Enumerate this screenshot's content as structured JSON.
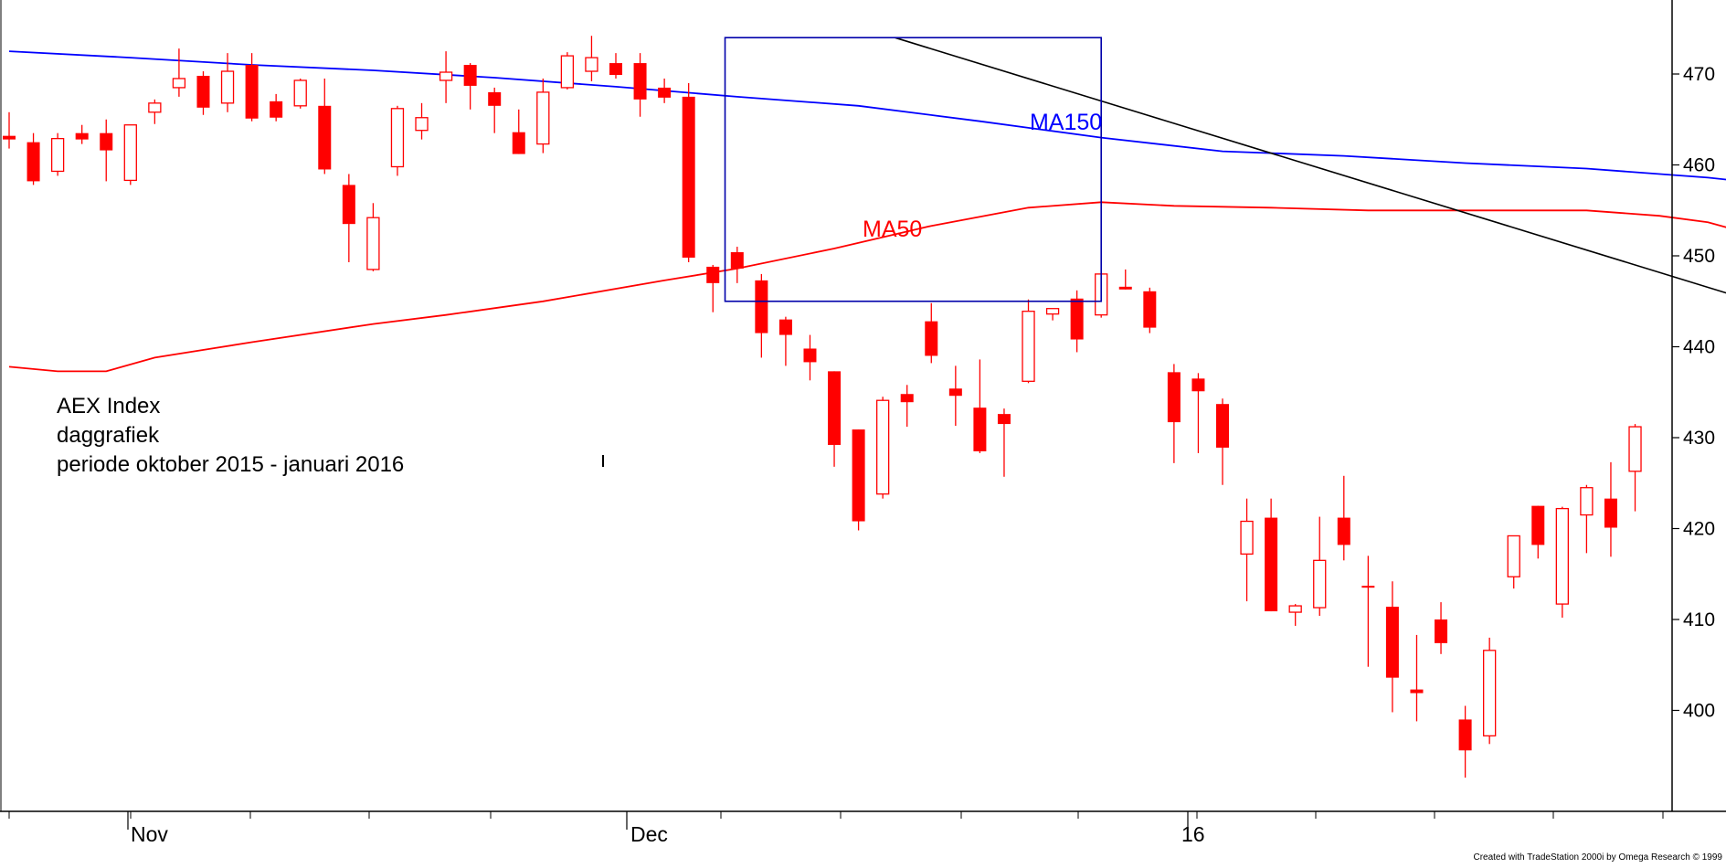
{
  "chart_data": {
    "type": "candlestick",
    "title_lines": [
      "AEX Index",
      "daggrafiek",
      "periode oktober 2015 - januari 2016"
    ],
    "x_tick_labels": [
      "Nov",
      "Dec",
      "16"
    ],
    "y_ticks": [
      400,
      410,
      420,
      430,
      440,
      450,
      460,
      470
    ],
    "ylim": [
      392,
      480
    ],
    "footer": "Created with TradeStation 2000i by Omega Research © 1999",
    "grid": false,
    "colors": {
      "candle": "#ff0000",
      "ma150": "#0000ff",
      "ma50": "#ff0000",
      "trendline": "#000000",
      "box": "#0000aa",
      "axis": "#000000"
    },
    "series": [
      {
        "name": "MA150",
        "label": "MA150",
        "color": "#0000ff",
        "values": [
          [
            0,
            472.5
          ],
          [
            5,
            471.8
          ],
          [
            10,
            471
          ],
          [
            15,
            470.4
          ],
          [
            20,
            469.6
          ],
          [
            25,
            468.6
          ],
          [
            30,
            467.5
          ],
          [
            35,
            466.5
          ],
          [
            40,
            464.8
          ],
          [
            45,
            463
          ],
          [
            50,
            461.5
          ],
          [
            55,
            461
          ],
          [
            60,
            460.2
          ],
          [
            65,
            459.6
          ],
          [
            70,
            458.6
          ],
          [
            75,
            457.2
          ],
          [
            80,
            456
          ],
          [
            85,
            454.7
          ],
          [
            90,
            453.2
          ],
          [
            95,
            452
          ],
          [
            97,
            451.4
          ]
        ]
      },
      {
        "name": "MA50",
        "label": "MA50",
        "color": "#ff0000",
        "values": [
          [
            0,
            437.8
          ],
          [
            2,
            437.3
          ],
          [
            4,
            437.3
          ],
          [
            6,
            438.8
          ],
          [
            10,
            440.5
          ],
          [
            15,
            442.5
          ],
          [
            18,
            443.5
          ],
          [
            22,
            445
          ],
          [
            27,
            447.3
          ],
          [
            30,
            448.6
          ],
          [
            34,
            450.8
          ],
          [
            38,
            453.3
          ],
          [
            42,
            455.3
          ],
          [
            45,
            455.9
          ],
          [
            48,
            455.5
          ],
          [
            52,
            455.3
          ],
          [
            56,
            455
          ],
          [
            60,
            455
          ],
          [
            65,
            455
          ],
          [
            68,
            454.4
          ],
          [
            70,
            453.7
          ],
          [
            73,
            451.5
          ],
          [
            77,
            448
          ],
          [
            81,
            445
          ],
          [
            85,
            441.5
          ],
          [
            89,
            437.8
          ],
          [
            93,
            435.8
          ],
          [
            96,
            433.7
          ],
          [
            97,
            433.4
          ]
        ]
      }
    ],
    "trendline": {
      "start": [
        36.5,
        474
      ],
      "end": [
        97,
        424.4
      ]
    },
    "box": {
      "x": [
        29.5,
        45
      ],
      "y": [
        445,
        474
      ]
    },
    "candles": [
      [
        0,
        463.2,
        465.8,
        461.8,
        462.8
      ],
      [
        1,
        462.5,
        463.5,
        457.8,
        458.2
      ],
      [
        2,
        459.3,
        463.5,
        458.8,
        462.9
      ],
      [
        3,
        463.5,
        464.4,
        462.3,
        462.8
      ],
      [
        4,
        463.5,
        465,
        458.2,
        461.6
      ],
      [
        5,
        458.3,
        464.2,
        457.8,
        464.4
      ],
      [
        6,
        465.8,
        467.2,
        464.5,
        466.8
      ],
      [
        7,
        468.5,
        472.8,
        467.5,
        469.5
      ],
      [
        8,
        469.8,
        470.3,
        465.5,
        466.3
      ],
      [
        9,
        466.8,
        472.3,
        465.8,
        470.3
      ],
      [
        10,
        471,
        472.3,
        464.8,
        465.1
      ],
      [
        11,
        467,
        467.8,
        464.8,
        465.2
      ],
      [
        12,
        466.5,
        469.5,
        466.2,
        469.3
      ],
      [
        13,
        466.5,
        469.5,
        459,
        459.5
      ],
      [
        14,
        457.8,
        459,
        449.3,
        453.5
      ],
      [
        15,
        448.5,
        455.8,
        448.3,
        454.2
      ],
      [
        16,
        459.8,
        466.5,
        458.8,
        466.2
      ],
      [
        17,
        463.8,
        466.8,
        462.8,
        465.2
      ],
      [
        18,
        469.3,
        472.5,
        466.8,
        470.2
      ],
      [
        19,
        471,
        471.2,
        466.1,
        468.7
      ],
      [
        20,
        468,
        468.5,
        463.5,
        466.5
      ],
      [
        21,
        463.6,
        466.1,
        461.2,
        461.2
      ],
      [
        22,
        462.3,
        469.5,
        461.3,
        468
      ],
      [
        23,
        468.5,
        472.4,
        468.3,
        472
      ],
      [
        24,
        470.3,
        474.2,
        469.2,
        471.8
      ],
      [
        25,
        471.2,
        472.3,
        469.5,
        469.9
      ],
      [
        26,
        471.2,
        472.3,
        465.3,
        467.2
      ],
      [
        27,
        468.5,
        469.5,
        466.8,
        467.4
      ],
      [
        28,
        467.5,
        469,
        449.3,
        449.8
      ],
      [
        29,
        448.8,
        449,
        443.8,
        447
      ],
      [
        30,
        450.4,
        451,
        447,
        448.6
      ],
      [
        31,
        447.3,
        448,
        438.8,
        441.5
      ],
      [
        32,
        443,
        443.3,
        437.9,
        441.3
      ],
      [
        33,
        439.8,
        441.3,
        436.3,
        438.3
      ],
      [
        34,
        437.3,
        437.3,
        426.8,
        429.2
      ],
      [
        35,
        430.9,
        430.9,
        419.8,
        420.8
      ],
      [
        36,
        423.8,
        434.5,
        423.3,
        434.1
      ],
      [
        37,
        434.8,
        435.8,
        431.2,
        433.9
      ],
      [
        38,
        442.8,
        444.8,
        438.2,
        439
      ],
      [
        39,
        435.4,
        437.9,
        431.3,
        434.6
      ],
      [
        40,
        433.3,
        438.6,
        428.3,
        428.5
      ],
      [
        41,
        432.6,
        433.2,
        425.7,
        431.5
      ],
      [
        42,
        436.2,
        445.2,
        436,
        443.9
      ],
      [
        43,
        443.6,
        444.2,
        442.9,
        444.2
      ],
      [
        44,
        445.3,
        446.2,
        439.4,
        440.8
      ],
      [
        45,
        443.5,
        447.8,
        443.2,
        448
      ],
      [
        46,
        446.6,
        448.5,
        446.3,
        446.3
      ],
      [
        47,
        446.1,
        446.5,
        441.5,
        442.1
      ],
      [
        48,
        437.2,
        438.1,
        427.2,
        431.7
      ],
      [
        49,
        436.5,
        437.1,
        428.3,
        435.1
      ],
      [
        50,
        433.7,
        434.3,
        424.8,
        428.9
      ],
      [
        51,
        417.2,
        423.3,
        412,
        420.8
      ],
      [
        52,
        421.2,
        423.3,
        410.9,
        410.9
      ],
      [
        53,
        410.8,
        411.7,
        409.3,
        411.5
      ],
      [
        54,
        411.3,
        421.3,
        410.4,
        416.5
      ],
      [
        55,
        421.2,
        425.8,
        416.5,
        418.2
      ],
      [
        56,
        413.7,
        417,
        404.8,
        413.5
      ],
      [
        57,
        411.4,
        414.2,
        399.8,
        403.6
      ],
      [
        58,
        402.3,
        408.3,
        398.8,
        401.9
      ],
      [
        59,
        410,
        411.9,
        406.2,
        407.4
      ],
      [
        60,
        399,
        400.5,
        392.6,
        395.6
      ],
      [
        61,
        397.2,
        408,
        396.3,
        406.6
      ],
      [
        62,
        414.7,
        419.2,
        413.4,
        419.2
      ],
      [
        63,
        422.5,
        422.5,
        416.7,
        418.2
      ],
      [
        64,
        411.7,
        422.4,
        410.2,
        422.2
      ],
      [
        65,
        421.5,
        424.8,
        417.3,
        424.5
      ],
      [
        66,
        423.3,
        427.3,
        416.9,
        420.1
      ],
      [
        67,
        426.3,
        431.5,
        421.9,
        431.2
      ]
    ]
  }
}
